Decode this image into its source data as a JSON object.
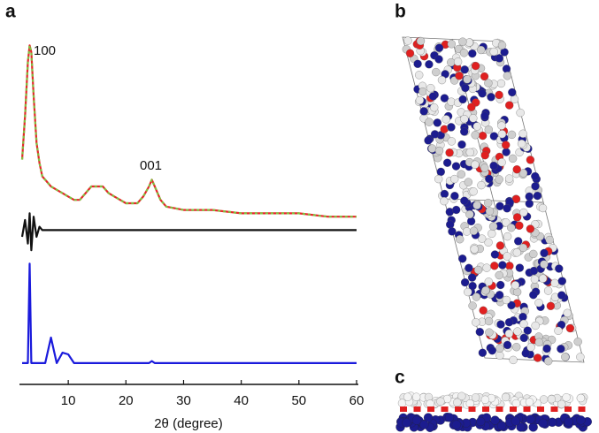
{
  "panel_labels": [
    "a",
    "b",
    "c"
  ],
  "chart_data": {
    "type": "line",
    "x_label": "2θ (degree)",
    "annotations": [
      "100",
      "001"
    ],
    "x": [
      2,
      2.5,
      3,
      3.3,
      3.6,
      4,
      4.5,
      5,
      5.5,
      6,
      7,
      8,
      9,
      10,
      11,
      12,
      13,
      14,
      15,
      16,
      17,
      18,
      19,
      20,
      21,
      22,
      23,
      24,
      24.5,
      25,
      26,
      27,
      30,
      35,
      40,
      45,
      50,
      55,
      60
    ],
    "series": [
      {
        "color": "#e8262b",
        "dashed": false,
        "values": [
          63,
          76,
          92,
          97,
          95,
          82,
          68,
          62,
          58,
          57,
          55,
          54,
          53,
          52,
          51,
          51,
          53,
          55,
          55,
          55,
          53,
          52,
          51,
          50,
          50,
          50,
          52,
          55,
          57,
          55,
          51,
          49,
          48,
          48,
          47,
          47,
          47,
          46,
          46
        ]
      },
      {
        "color": "#7fc241",
        "dashed": true,
        "values": [
          63,
          76,
          92,
          97,
          95,
          82,
          68,
          62,
          58,
          57,
          55,
          54,
          53,
          52,
          51,
          51,
          53,
          55,
          55,
          55,
          53,
          52,
          51,
          50,
          50,
          50,
          52,
          55,
          57,
          55,
          51,
          49,
          48,
          48,
          47,
          47,
          47,
          46,
          46
        ]
      },
      {
        "color": "#111111",
        "dashed": false,
        "values": [
          40,
          45,
          38,
          47,
          36,
          46,
          40,
          43,
          42,
          42,
          42,
          42,
          42,
          42,
          42,
          42,
          42,
          42,
          42,
          42,
          42,
          42,
          42,
          42,
          42,
          42,
          42,
          42,
          42,
          42,
          42,
          42,
          42,
          42,
          42,
          42,
          42,
          42,
          42
        ]
      },
      {
        "color": "#1a1adc",
        "dashed": false,
        "values": [
          2.4,
          2.4,
          2.4,
          32,
          2.4,
          2.4,
          2.4,
          2.4,
          2.4,
          2.4,
          10,
          2.4,
          5.5,
          5,
          2.4,
          2.4,
          2.4,
          2.4,
          2.4,
          2.4,
          2.4,
          2.4,
          2.4,
          2.4,
          2.4,
          2.4,
          2.4,
          2.4,
          3,
          2.4,
          2.4,
          2.4,
          2.4,
          2.4,
          2.4,
          2.4,
          2.4,
          2.4,
          2.4
        ]
      }
    ],
    "xlim": [
      2,
      60
    ],
    "xticks": [
      10,
      20,
      30,
      40,
      50,
      60
    ],
    "ylim": [
      0,
      100
    ]
  }
}
